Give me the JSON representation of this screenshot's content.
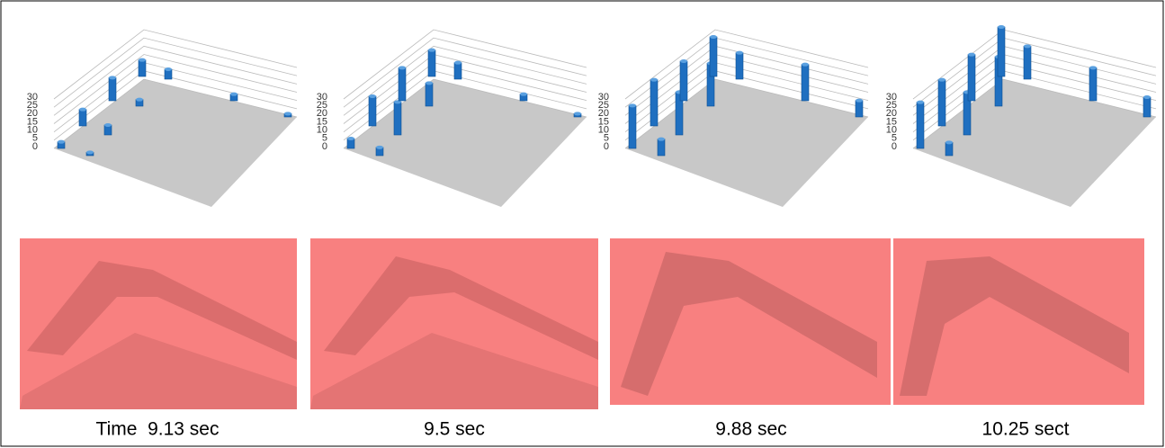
{
  "chart_data": [
    {
      "type": "bar3d",
      "color": "#1f6fc0",
      "ylim": [
        0,
        30
      ],
      "yticks": [
        0,
        5,
        10,
        15,
        20,
        25,
        30
      ],
      "values": [
        4,
        2,
        10,
        6,
        14,
        4,
        10,
        6,
        4,
        2
      ]
    },
    {
      "type": "bar3d",
      "color": "#1f6fc0",
      "ylim": [
        0,
        30
      ],
      "yticks": [
        0,
        5,
        10,
        15,
        20,
        25,
        30
      ],
      "values": [
        6,
        5,
        18,
        20,
        20,
        14,
        16,
        10,
        4,
        2
      ]
    },
    {
      "type": "bar3d",
      "color": "#1f6fc0",
      "ylim": [
        0,
        30
      ],
      "yticks": [
        0,
        5,
        10,
        15,
        20,
        25,
        30
      ],
      "values": [
        26,
        10,
        28,
        26,
        24,
        26,
        24,
        16,
        22,
        10
      ]
    },
    {
      "type": "bar3d",
      "color": "#1f6fc0",
      "ylim": [
        0,
        30
      ],
      "yticks": [
        0,
        5,
        10,
        15,
        20,
        25,
        30
      ],
      "values": [
        28,
        8,
        28,
        26,
        28,
        30,
        30,
        20,
        20,
        12
      ]
    }
  ],
  "captions": [
    "Time  9.13 sec",
    "9.5 sec",
    "9.88 sec",
    "10.25 sect"
  ]
}
